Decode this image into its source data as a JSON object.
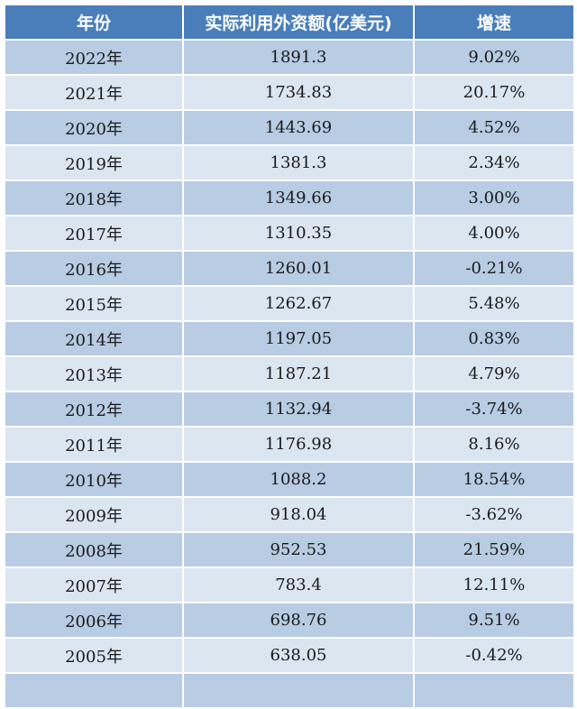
{
  "table": {
    "headers": [
      "年份",
      "实际利用外资额(亿美元)",
      "增速"
    ],
    "rows": [
      [
        "2022年",
        "1891.3",
        "9.02%"
      ],
      [
        "2021年",
        "1734.83",
        "20.17%"
      ],
      [
        "2020年",
        "1443.69",
        "4.52%"
      ],
      [
        "2019年",
        "1381.3",
        "2.34%"
      ],
      [
        "2018年",
        "1349.66",
        "3.00%"
      ],
      [
        "2017年",
        "1310.35",
        "4.00%"
      ],
      [
        "2016年",
        "1260.01",
        "-0.21%"
      ],
      [
        "2015年",
        "1262.67",
        "5.48%"
      ],
      [
        "2014年",
        "1197.05",
        "0.83%"
      ],
      [
        "2013年",
        "1187.21",
        "4.79%"
      ],
      [
        "2012年",
        "1132.94",
        "-3.74%"
      ],
      [
        "2011年",
        "1176.98",
        "8.16%"
      ],
      [
        "2010年",
        "1088.2",
        "18.54%"
      ],
      [
        "2009年",
        "918.04",
        "-3.62%"
      ],
      [
        "2008年",
        "952.53",
        "21.59%"
      ],
      [
        "2007年",
        "783.4",
        "12.11%"
      ],
      [
        "2006年",
        "698.76",
        "9.51%"
      ],
      [
        "2005年",
        "638.05",
        "-0.42%"
      ]
    ],
    "colors": {
      "header_bg": "#4a7ebb",
      "row_dark": "#b8cce4",
      "row_light": "#dce6f1"
    }
  }
}
